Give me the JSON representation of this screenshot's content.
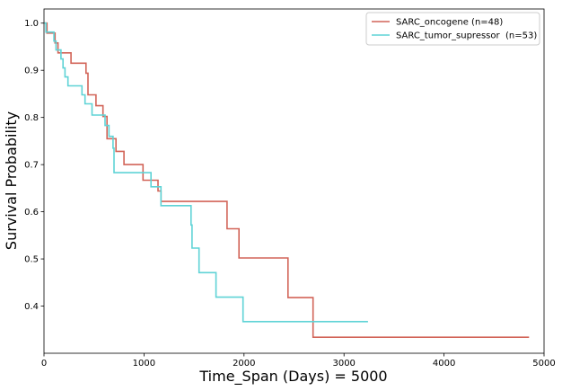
{
  "chart_data": {
    "type": "line",
    "title": "",
    "xlabel": "Time_Span (Days) = 5000",
    "ylabel": "Survival Probability",
    "xlim": [
      0,
      5000
    ],
    "ylim": [
      0.3,
      1.03
    ],
    "xticks": [
      0,
      1000,
      2000,
      3000,
      4000,
      5000
    ],
    "yticks": [
      0.4,
      0.5,
      0.6,
      0.7,
      0.8,
      0.9,
      1.0
    ],
    "xtick_labels": [
      "0",
      "1000",
      "2000",
      "3000",
      "4000",
      "5000"
    ],
    "ytick_labels": [
      "0.4",
      "0.5",
      "0.6",
      "0.7",
      "0.8",
      "0.9",
      "1.0"
    ],
    "grid": false,
    "legend_position": "top-right",
    "step": true,
    "series": [
      {
        "name": "SARC_oncogene (n=48)",
        "color": "#d26458",
        "x": [
          0,
          30,
          110,
          140,
          270,
          420,
          440,
          520,
          590,
          630,
          720,
          800,
          990,
          1140,
          1170,
          1830,
          1950,
          2440,
          2690,
          4850
        ],
        "y": [
          1.0,
          0.979,
          0.958,
          0.937,
          0.915,
          0.894,
          0.848,
          0.825,
          0.802,
          0.755,
          0.728,
          0.7,
          0.667,
          0.644,
          0.622,
          0.564,
          0.502,
          0.418,
          0.334,
          0.334
        ]
      },
      {
        "name": "SARC_tumor_supressor  (n=53)",
        "color": "#5fd3d6",
        "x": [
          0,
          20,
          100,
          120,
          170,
          190,
          210,
          240,
          270,
          380,
          410,
          480,
          610,
          650,
          690,
          700,
          1070,
          1170,
          1470,
          1480,
          1550,
          1720,
          1990,
          3240
        ],
        "y": [
          1.0,
          0.981,
          0.962,
          0.943,
          0.924,
          0.905,
          0.886,
          0.867,
          0.867,
          0.848,
          0.829,
          0.805,
          0.783,
          0.76,
          0.735,
          0.683,
          0.653,
          0.613,
          0.572,
          0.523,
          0.471,
          0.419,
          0.367,
          0.367
        ]
      }
    ]
  }
}
